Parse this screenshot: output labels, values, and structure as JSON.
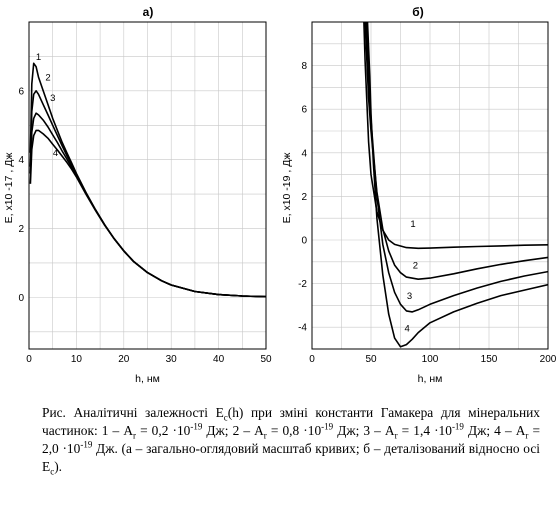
{
  "chart_data": [
    {
      "type": "line",
      "panel_label": "а)",
      "xlabel": "h, нм",
      "ylabel": "E, x10 -17 , Дж",
      "xlim": [
        0,
        50
      ],
      "ylim": [
        -1.5,
        8.0
      ],
      "xticks": [
        "0",
        "10",
        "20",
        "30",
        "40",
        "50"
      ],
      "yticks": [
        "0",
        "2",
        "4",
        "6"
      ],
      "grid": true,
      "series": [
        {
          "name": "1",
          "x": [
            0.3,
            0.6,
            1.0,
            1.5,
            2,
            3,
            4,
            5,
            6,
            7,
            8,
            9,
            10,
            12,
            14,
            16,
            18,
            20,
            22,
            25,
            28,
            30,
            35,
            40,
            45,
            50
          ],
          "y": [
            4.2,
            6.2,
            6.8,
            6.7,
            6.4,
            6.0,
            5.6,
            5.2,
            4.85,
            4.5,
            4.2,
            3.9,
            3.6,
            3.05,
            2.55,
            2.1,
            1.7,
            1.35,
            1.05,
            0.72,
            0.48,
            0.36,
            0.17,
            0.08,
            0.04,
            0.02
          ]
        },
        {
          "name": "2",
          "x": [
            0.3,
            0.6,
            1.0,
            1.5,
            2,
            3,
            4,
            5,
            6,
            7,
            8,
            9,
            10,
            12,
            14,
            16,
            18,
            20,
            22,
            25,
            28,
            30,
            35,
            40,
            45,
            50
          ],
          "y": [
            3.8,
            5.4,
            5.9,
            6.0,
            5.9,
            5.6,
            5.3,
            5.0,
            4.7,
            4.4,
            4.12,
            3.85,
            3.58,
            3.04,
            2.55,
            2.1,
            1.7,
            1.35,
            1.05,
            0.72,
            0.48,
            0.36,
            0.17,
            0.08,
            0.04,
            0.02
          ]
        },
        {
          "name": "3",
          "x": [
            0.3,
            0.6,
            1.0,
            1.5,
            2,
            3,
            4,
            5,
            6,
            7,
            8,
            9,
            10,
            12,
            14,
            16,
            18,
            20,
            22,
            25,
            28,
            30,
            35,
            40,
            45,
            50
          ],
          "y": [
            3.6,
            4.8,
            5.2,
            5.35,
            5.3,
            5.15,
            4.95,
            4.72,
            4.5,
            4.25,
            4.02,
            3.78,
            3.54,
            3.02,
            2.54,
            2.1,
            1.7,
            1.35,
            1.05,
            0.72,
            0.48,
            0.36,
            0.17,
            0.08,
            0.04,
            0.02
          ]
        },
        {
          "name": "4",
          "x": [
            0.3,
            0.6,
            1.0,
            1.5,
            2,
            3,
            4,
            5,
            6,
            7,
            8,
            9,
            10,
            12,
            14,
            16,
            18,
            20,
            22,
            25,
            28,
            30,
            35,
            40,
            45,
            50
          ],
          "y": [
            3.3,
            4.3,
            4.7,
            4.85,
            4.85,
            4.75,
            4.62,
            4.45,
            4.28,
            4.1,
            3.92,
            3.72,
            3.5,
            3.0,
            2.53,
            2.09,
            1.7,
            1.35,
            1.05,
            0.72,
            0.48,
            0.36,
            0.17,
            0.08,
            0.04,
            0.02
          ]
        }
      ]
    },
    {
      "type": "line",
      "panel_label": "б)",
      "xlabel": "h, нм",
      "ylabel": "E, x10 -19 , Дж",
      "xlim": [
        0,
        200
      ],
      "ylim": [
        -5,
        10
      ],
      "xticks": [
        "0",
        "50",
        "100",
        "150",
        "200"
      ],
      "yticks": [
        "-4",
        "-2",
        "0",
        "2",
        "4",
        "6",
        "8"
      ],
      "grid": true,
      "series": [
        {
          "name": "1",
          "x": [
            44,
            45,
            48,
            50,
            55,
            60,
            65,
            70,
            80,
            90,
            100,
            120,
            140,
            160,
            180,
            200
          ],
          "y": [
            10,
            8.2,
            4.5,
            3.0,
            1.3,
            0.45,
            0.0,
            -0.2,
            -0.35,
            -0.38,
            -0.37,
            -0.33,
            -0.3,
            -0.27,
            -0.24,
            -0.22
          ]
        },
        {
          "name": "2",
          "x": [
            45,
            48,
            50,
            55,
            60,
            65,
            70,
            75,
            80,
            90,
            100,
            120,
            140,
            160,
            180,
            200
          ],
          "y": [
            10,
            6.5,
            5.0,
            2.2,
            0.5,
            -0.5,
            -1.15,
            -1.5,
            -1.7,
            -1.8,
            -1.75,
            -1.55,
            -1.32,
            -1.12,
            -0.95,
            -0.8
          ]
        },
        {
          "name": "3",
          "x": [
            46,
            48,
            50,
            55,
            60,
            65,
            70,
            75,
            80,
            85,
            90,
            100,
            120,
            140,
            160,
            180,
            200
          ],
          "y": [
            10,
            7.5,
            5.5,
            2.0,
            -0.2,
            -1.5,
            -2.4,
            -2.95,
            -3.25,
            -3.3,
            -3.2,
            -2.95,
            -2.55,
            -2.2,
            -1.9,
            -1.65,
            -1.45
          ]
        },
        {
          "name": "4",
          "x": [
            47,
            49,
            50,
            52,
            55,
            60,
            65,
            70,
            75,
            80,
            85,
            90,
            100,
            120,
            140,
            160,
            180,
            200
          ],
          "y": [
            10,
            7.5,
            5.8,
            3.5,
            1.0,
            -1.6,
            -3.4,
            -4.5,
            -4.9,
            -4.8,
            -4.55,
            -4.25,
            -3.8,
            -3.3,
            -2.9,
            -2.55,
            -2.3,
            -2.05
          ]
        }
      ]
    }
  ],
  "caption": {
    "line1": "Рис.   Аналітичні залежності E",
    "line1_sub": "c",
    "line1_rest": "(h) при зміні константи Гамакера для мінеральних частинок: 1 – A",
    "ar": "r",
    "v1": " = 0,2 ·10",
    "exp": "-19",
    "unit1": " Дж; 2 – A",
    "v2": " = 0,8 ·10",
    "unit2": " Дж; 3 – A",
    "v3": " = 1,4 ·10",
    "unit3": " Дж; 4 – A",
    "v4": " = 2,0 ·10",
    "unit4": " Дж. (а – загально-оглядовий масштаб кривих; б – деталізований відносно осі E",
    "end": ")."
  }
}
